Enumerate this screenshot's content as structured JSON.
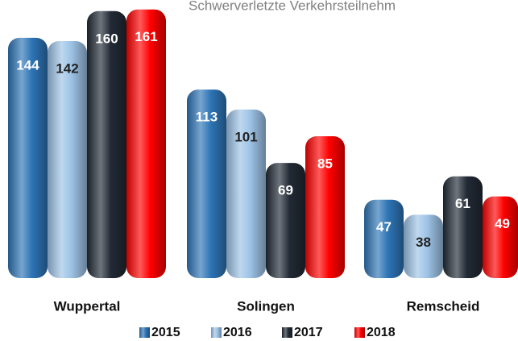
{
  "chart_data": {
    "type": "bar",
    "title": "Schwerverletzte Verkehrsteilnehm",
    "categories": [
      "Wuppertal",
      "Solingen",
      "Remscheid"
    ],
    "series": [
      {
        "name": "2015",
        "color": "#2e75b6",
        "values": [
          144,
          113,
          47
        ]
      },
      {
        "name": "2016",
        "color": "#9dc3e6",
        "values": [
          142,
          101,
          38
        ]
      },
      {
        "name": "2017",
        "color": "#222a35",
        "values": [
          160,
          69,
          61
        ]
      },
      {
        "name": "2018",
        "color": "#ff0000",
        "values": [
          161,
          85,
          49
        ]
      }
    ]
  }
}
